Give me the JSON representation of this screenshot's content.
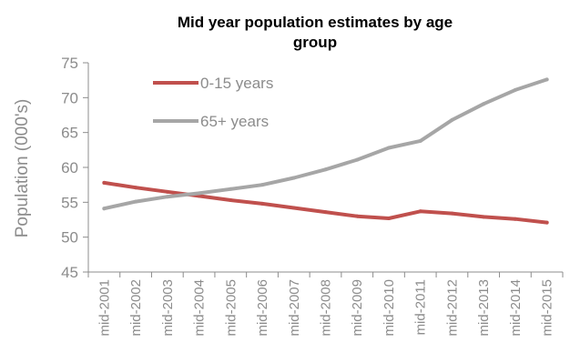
{
  "chart_data": {
    "type": "line",
    "title_lines": [
      "Mid year population estimates by age",
      "group"
    ],
    "ylabel": "Population (000's)",
    "ylim": [
      45,
      75
    ],
    "yticks": [
      45,
      50,
      55,
      60,
      65,
      70,
      75
    ],
    "grid": false,
    "legend_position": "top-left",
    "categories": [
      "mid-2001",
      "mid-2002",
      "mid-2003",
      "mid-2004",
      "mid-2005",
      "mid-2006",
      "mid-2007",
      "mid-2008",
      "mid-2009",
      "mid-2010",
      "mid-2011",
      "mid-2012",
      "mid-2013",
      "mid-2014",
      "mid-2015"
    ],
    "series": [
      {
        "name": "0-15 years",
        "color": "#c0504d",
        "values": [
          57.8,
          57.1,
          56.5,
          55.9,
          55.3,
          54.8,
          54.2,
          53.6,
          53.0,
          52.7,
          53.7,
          53.4,
          52.9,
          52.6,
          52.1
        ]
      },
      {
        "name": "65+ years",
        "color": "#a6a6a6",
        "values": [
          54.1,
          55.1,
          55.8,
          56.3,
          56.9,
          57.5,
          58.5,
          59.7,
          61.1,
          62.8,
          63.8,
          66.8,
          69.1,
          71.1,
          72.6
        ]
      }
    ]
  }
}
